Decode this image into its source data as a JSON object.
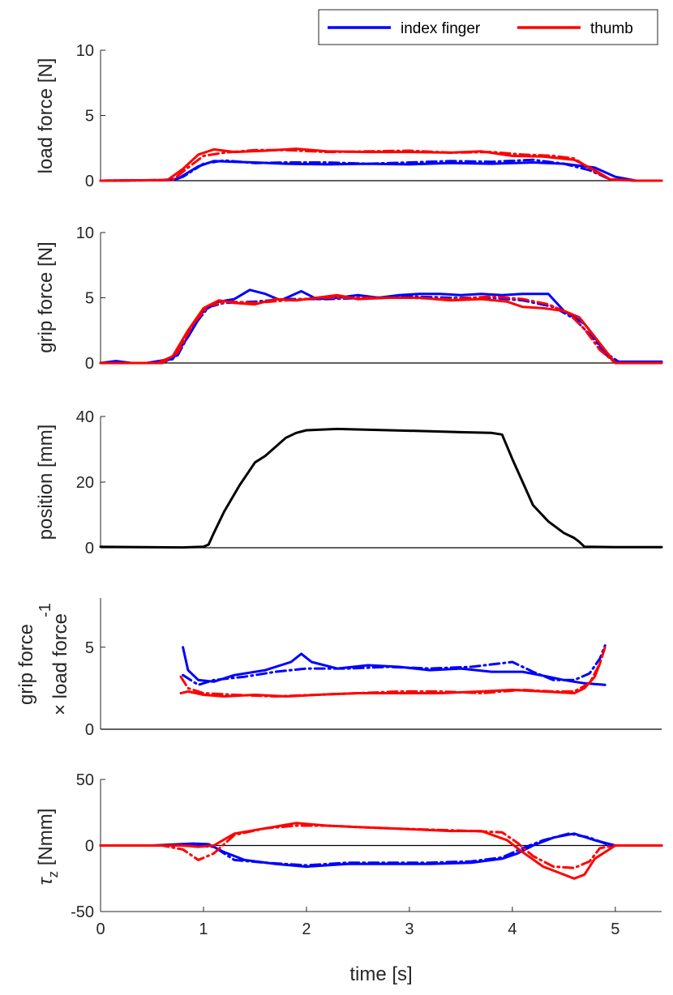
{
  "legend": {
    "entries": [
      {
        "label": "index finger",
        "color": "#0000ff"
      },
      {
        "label": "thumb",
        "color": "#ff0000"
      }
    ]
  },
  "xaxis": {
    "label": "time [s]",
    "lim": [
      0,
      5.45
    ],
    "ticks": [
      0,
      1,
      2,
      3,
      4,
      5
    ],
    "tick_labels": [
      "0",
      "1",
      "2",
      "3",
      "4",
      "5"
    ]
  },
  "chart_data": [
    {
      "type": "line",
      "ylabel": "load force [N]",
      "ylim": [
        0,
        10
      ],
      "yticks": [
        0,
        5,
        10
      ],
      "ytick_labels": [
        "0",
        "5",
        "10"
      ],
      "series": [
        {
          "name": "index finger",
          "style": "solid",
          "color": "#0000ff",
          "x": [
            0,
            0.6,
            0.75,
            0.95,
            1.1,
            1.3,
            1.5,
            1.8,
            2.2,
            2.6,
            3.0,
            3.4,
            3.8,
            4.2,
            4.5,
            4.8,
            5.0,
            5.2,
            5.45
          ],
          "y": [
            0,
            0.05,
            0.15,
            1.1,
            1.5,
            1.45,
            1.4,
            1.3,
            1.25,
            1.3,
            1.25,
            1.35,
            1.3,
            1.4,
            1.3,
            1.0,
            0.3,
            0.0,
            0.0
          ]
        },
        {
          "name": "index finger",
          "style": "dashdot",
          "color": "#0000ff",
          "x": [
            0,
            0.7,
            0.8,
            1.0,
            1.2,
            1.5,
            1.8,
            2.2,
            2.6,
            3.0,
            3.4,
            3.8,
            4.2,
            4.5,
            4.75,
            4.95,
            5.2,
            5.45
          ],
          "y": [
            0,
            0.05,
            0.3,
            1.3,
            1.55,
            1.35,
            1.4,
            1.4,
            1.3,
            1.4,
            1.5,
            1.45,
            1.6,
            1.3,
            0.8,
            0.1,
            0,
            0
          ]
        },
        {
          "name": "thumb",
          "style": "solid",
          "color": "#ff0000",
          "x": [
            0,
            0.65,
            0.8,
            0.95,
            1.1,
            1.3,
            1.6,
            1.9,
            2.2,
            2.6,
            3.0,
            3.4,
            3.7,
            4.0,
            4.3,
            4.6,
            4.8,
            4.95,
            5.2,
            5.45
          ],
          "y": [
            0,
            0.05,
            0.9,
            2.0,
            2.4,
            2.2,
            2.3,
            2.45,
            2.25,
            2.2,
            2.2,
            2.15,
            2.25,
            1.9,
            1.85,
            1.6,
            0.8,
            0.1,
            0,
            0
          ]
        },
        {
          "name": "thumb",
          "style": "dashdot",
          "color": "#ff0000",
          "x": [
            0,
            0.7,
            0.85,
            1.0,
            1.2,
            1.5,
            1.8,
            2.2,
            2.6,
            3.0,
            3.4,
            3.8,
            4.1,
            4.4,
            4.6,
            4.8,
            4.95,
            5.2,
            5.45
          ],
          "y": [
            0,
            0.05,
            1.0,
            1.9,
            2.15,
            2.35,
            2.35,
            2.2,
            2.25,
            2.3,
            2.15,
            2.2,
            2.0,
            1.9,
            1.7,
            0.7,
            0.1,
            0,
            0
          ]
        }
      ]
    },
    {
      "type": "line",
      "ylabel": "grip force [N]",
      "ylim": [
        0,
        10
      ],
      "yticks": [
        0,
        5,
        10
      ],
      "ytick_labels": [
        "0",
        "5",
        "10"
      ],
      "series": [
        {
          "name": "index finger",
          "style": "solid",
          "color": "#0000ff",
          "x": [
            0,
            0.15,
            0.3,
            0.45,
            0.6,
            0.7,
            0.85,
            1.0,
            1.15,
            1.3,
            1.45,
            1.6,
            1.75,
            1.95,
            2.1,
            2.3,
            2.5,
            2.7,
            2.9,
            3.1,
            3.3,
            3.5,
            3.7,
            3.9,
            4.1,
            4.35,
            4.5,
            4.7,
            4.8,
            4.9,
            5.0,
            5.2,
            5.45
          ],
          "y": [
            0,
            0.15,
            0,
            0,
            0.2,
            0.3,
            2.0,
            4.0,
            4.7,
            4.9,
            5.6,
            5.3,
            4.8,
            5.5,
            4.9,
            5.0,
            5.2,
            5.0,
            5.2,
            5.3,
            5.3,
            5.2,
            5.3,
            5.2,
            5.3,
            5.3,
            4.0,
            3.0,
            2.0,
            0.7,
            0.1,
            0.1,
            0.1
          ]
        },
        {
          "name": "index finger",
          "style": "dashdot",
          "color": "#0000ff",
          "x": [
            0,
            0.6,
            0.75,
            0.9,
            1.05,
            1.2,
            1.5,
            1.8,
            2.2,
            2.6,
            3.0,
            3.4,
            3.8,
            4.1,
            4.4,
            4.6,
            4.75,
            4.9,
            5.05,
            5.2,
            5.45
          ],
          "y": [
            0,
            0,
            0.6,
            2.8,
            4.3,
            4.6,
            4.7,
            4.9,
            4.9,
            5.0,
            5.1,
            5.0,
            5.0,
            4.8,
            4.3,
            3.4,
            2.2,
            0.8,
            0,
            0,
            0
          ]
        },
        {
          "name": "thumb",
          "style": "solid",
          "color": "#ff0000",
          "x": [
            0,
            0.55,
            0.7,
            0.85,
            1.0,
            1.15,
            1.3,
            1.5,
            1.7,
            1.9,
            2.1,
            2.3,
            2.5,
            2.8,
            3.1,
            3.4,
            3.7,
            3.95,
            4.1,
            4.3,
            4.5,
            4.65,
            4.8,
            4.95,
            5.0,
            5.45
          ],
          "y": [
            0,
            0,
            0.5,
            2.5,
            4.2,
            4.8,
            4.6,
            4.5,
            4.9,
            4.8,
            5.0,
            5.2,
            4.9,
            5.0,
            5.0,
            4.8,
            4.9,
            4.7,
            4.3,
            4.2,
            4.0,
            3.5,
            2.0,
            0.5,
            0,
            0
          ]
        },
        {
          "name": "thumb",
          "style": "dashdot",
          "color": "#ff0000",
          "x": [
            0,
            0.6,
            0.75,
            0.9,
            1.05,
            1.25,
            1.5,
            1.8,
            2.2,
            2.6,
            3.0,
            3.4,
            3.8,
            4.1,
            4.35,
            4.55,
            4.7,
            4.85,
            5.0,
            5.45
          ],
          "y": [
            0,
            0,
            0.8,
            3.0,
            4.4,
            4.7,
            4.6,
            4.8,
            5.0,
            5.0,
            5.0,
            4.9,
            5.1,
            4.9,
            4.5,
            3.8,
            2.6,
            1.0,
            0,
            0
          ]
        }
      ]
    },
    {
      "type": "line",
      "ylabel": "position [mm]",
      "ylim": [
        0,
        40
      ],
      "yticks": [
        0,
        20,
        40
      ],
      "ytick_labels": [
        "0",
        "20",
        "40"
      ],
      "series": [
        {
          "name": "position",
          "style": "solid",
          "color": "#000000",
          "x": [
            0,
            0.4,
            0.8,
            1.0,
            1.05,
            1.1,
            1.2,
            1.35,
            1.5,
            1.6,
            1.8,
            1.9,
            2.0,
            2.3,
            2.8,
            3.2,
            3.5,
            3.8,
            3.9,
            4.0,
            4.1,
            4.2,
            4.35,
            4.5,
            4.6,
            4.65,
            4.7,
            5.0,
            5.45
          ],
          "y": [
            0.3,
            0.2,
            0.1,
            0.3,
            1.0,
            4.5,
            11,
            19,
            26,
            28,
            33.5,
            35,
            35.8,
            36.2,
            35.8,
            35.5,
            35.2,
            35.0,
            34.5,
            27,
            20,
            13,
            8,
            4.5,
            3,
            1.8,
            0.3,
            0.2,
            0.2
          ]
        }
      ]
    },
    {
      "type": "line",
      "ylabel": "grip force × load force-1",
      "ylabel_lines": [
        "grip force",
        "× load force",
        "-1"
      ],
      "ylim": [
        0,
        8
      ],
      "yticks": [
        0,
        5
      ],
      "ytick_labels": [
        "0",
        "5"
      ],
      "series": [
        {
          "name": "index finger",
          "style": "solid",
          "color": "#0000ff",
          "x": [
            0.8,
            0.85,
            0.95,
            1.1,
            1.3,
            1.6,
            1.85,
            1.95,
            2.05,
            2.3,
            2.6,
            2.9,
            3.2,
            3.5,
            3.8,
            4.1,
            4.35,
            4.5,
            4.7,
            4.9
          ],
          "y": [
            5.0,
            3.6,
            3.0,
            2.9,
            3.3,
            3.6,
            4.1,
            4.6,
            4.1,
            3.7,
            3.9,
            3.8,
            3.6,
            3.7,
            3.5,
            3.5,
            3.2,
            3.0,
            2.8,
            2.7
          ]
        },
        {
          "name": "index finger",
          "style": "dashdot",
          "color": "#0000ff",
          "x": [
            0.8,
            0.95,
            1.1,
            1.4,
            1.7,
            2.0,
            2.4,
            2.8,
            3.2,
            3.6,
            4.0,
            4.2,
            4.4,
            4.6,
            4.75,
            4.85,
            4.9
          ],
          "y": [
            3.3,
            2.7,
            3.0,
            3.2,
            3.5,
            3.7,
            3.7,
            3.8,
            3.7,
            3.8,
            4.1,
            3.5,
            3.0,
            3.0,
            3.4,
            4.3,
            5.1
          ]
        },
        {
          "name": "thumb",
          "style": "solid",
          "color": "#ff0000",
          "x": [
            0.78,
            0.85,
            1.0,
            1.2,
            1.5,
            1.8,
            2.1,
            2.5,
            2.9,
            3.3,
            3.7,
            4.0,
            4.3,
            4.6,
            4.7,
            4.8,
            4.85
          ],
          "y": [
            2.2,
            2.3,
            2.1,
            2.0,
            2.1,
            2.0,
            2.1,
            2.2,
            2.2,
            2.2,
            2.3,
            2.4,
            2.3,
            2.2,
            2.5,
            3.2,
            4.0
          ]
        },
        {
          "name": "thumb",
          "style": "dashdot",
          "color": "#ff0000",
          "x": [
            0.78,
            0.85,
            1.0,
            1.3,
            1.7,
            2.1,
            2.5,
            2.9,
            3.3,
            3.7,
            4.1,
            4.4,
            4.6,
            4.75,
            4.85,
            4.9
          ],
          "y": [
            3.2,
            2.5,
            2.2,
            2.1,
            2.0,
            2.1,
            2.2,
            2.3,
            2.3,
            2.2,
            2.4,
            2.3,
            2.3,
            2.8,
            4.0,
            5.0
          ]
        }
      ]
    },
    {
      "type": "line",
      "ylabel": "τz [Nmm]",
      "ylabel_main": "τ",
      "ylabel_sub": "z",
      "ylabel_rest": " [Nmm]",
      "ylim": [
        -50,
        50
      ],
      "yticks": [
        -50,
        0,
        50
      ],
      "ytick_labels": [
        "-50",
        "0",
        "50"
      ],
      "series": [
        {
          "name": "index finger",
          "style": "solid",
          "color": "#0000ff",
          "x": [
            0,
            0.5,
            0.9,
            1.05,
            1.2,
            1.4,
            1.7,
            2.0,
            2.4,
            2.8,
            3.2,
            3.6,
            3.9,
            4.05,
            4.2,
            4.4,
            4.6,
            4.8,
            5.0,
            5.45
          ],
          "y": [
            0,
            0,
            1.5,
            1.0,
            -5,
            -11,
            -14,
            -16,
            -14,
            -14,
            -14,
            -13,
            -10,
            -6,
            0,
            6,
            9,
            4,
            0,
            0
          ]
        },
        {
          "name": "index finger",
          "style": "dashdot",
          "color": "#0000ff",
          "x": [
            0,
            0.6,
            0.9,
            1.1,
            1.3,
            1.6,
            2.0,
            2.4,
            2.8,
            3.2,
            3.6,
            3.9,
            4.1,
            4.3,
            4.55,
            4.75,
            4.95,
            5.45
          ],
          "y": [
            0,
            0,
            0,
            -1,
            -11,
            -13,
            -15,
            -13,
            -13,
            -13,
            -12,
            -9,
            -2,
            4,
            9,
            6,
            0,
            0
          ]
        },
        {
          "name": "thumb",
          "style": "solid",
          "color": "#ff0000",
          "x": [
            0,
            0.6,
            0.8,
            0.95,
            1.1,
            1.3,
            1.6,
            1.9,
            2.2,
            2.5,
            2.8,
            3.1,
            3.4,
            3.7,
            3.95,
            4.1,
            4.3,
            4.5,
            4.6,
            4.7,
            4.8,
            5.0,
            5.45
          ],
          "y": [
            0,
            0,
            0,
            -1,
            0,
            9,
            13,
            17,
            15,
            14,
            13,
            12,
            11,
            11,
            4,
            -5,
            -16,
            -22,
            -25,
            -22,
            -10,
            0,
            0
          ]
        },
        {
          "name": "thumb",
          "style": "dashdot",
          "color": "#ff0000",
          "x": [
            0,
            0.6,
            0.8,
            0.95,
            1.1,
            1.3,
            1.6,
            1.9,
            2.2,
            2.5,
            2.8,
            3.2,
            3.6,
            3.9,
            4.05,
            4.2,
            4.4,
            4.6,
            4.75,
            4.85,
            5.0,
            5.45
          ],
          "y": [
            0,
            0,
            -3,
            -11,
            -6,
            8,
            13,
            15,
            15,
            14,
            13,
            12,
            11,
            10,
            2,
            -8,
            -16,
            -17,
            -12,
            -2,
            0,
            0
          ]
        }
      ]
    }
  ]
}
